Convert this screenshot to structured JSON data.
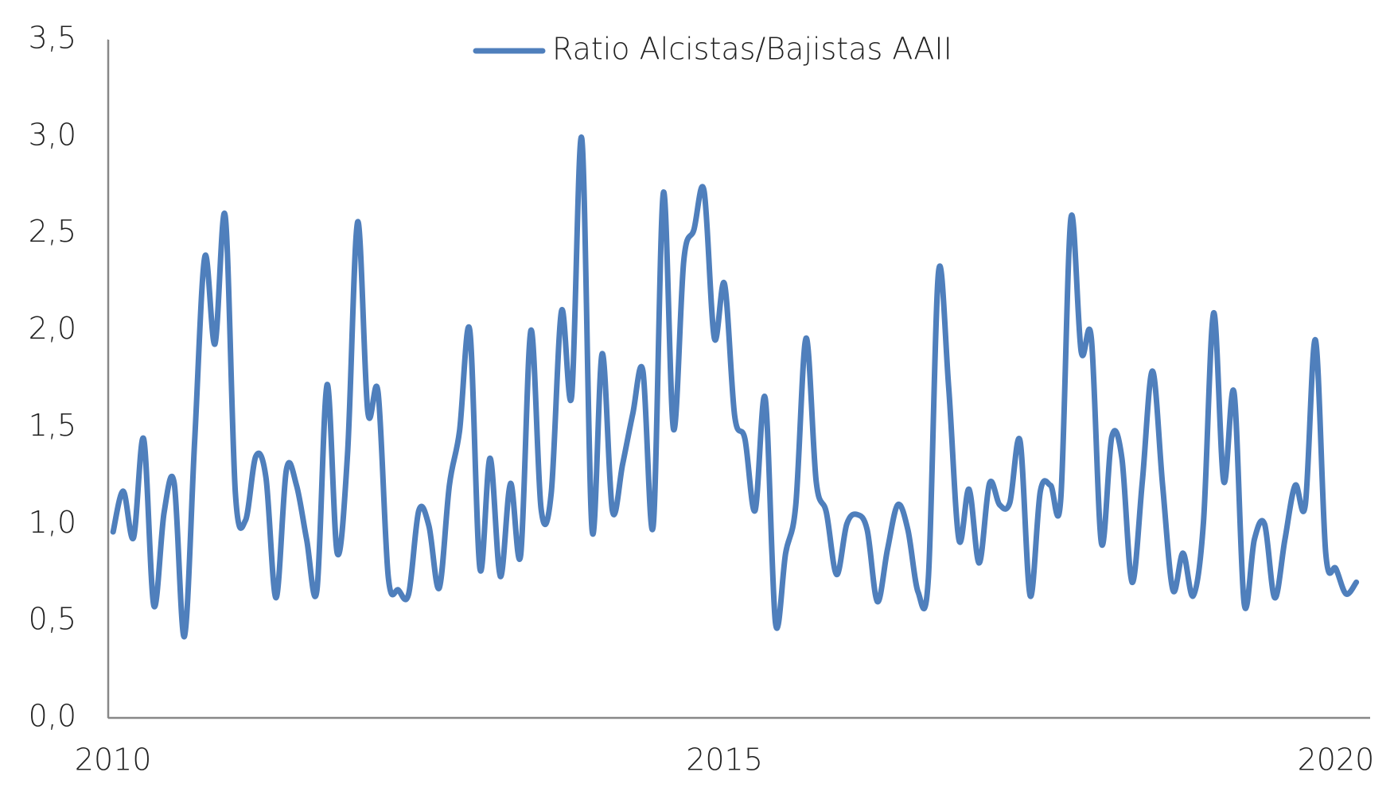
{
  "chart_data": {
    "type": "line",
    "x": [
      2010,
      2010.083,
      2010.167,
      2010.25,
      2010.333,
      2010.417,
      2010.5,
      2010.583,
      2010.667,
      2010.75,
      2010.833,
      2010.917,
      2011,
      2011.083,
      2011.167,
      2011.25,
      2011.333,
      2011.417,
      2011.5,
      2011.583,
      2011.667,
      2011.75,
      2011.833,
      2011.917,
      2012,
      2012.083,
      2012.167,
      2012.25,
      2012.333,
      2012.417,
      2012.5,
      2012.583,
      2012.667,
      2012.75,
      2012.833,
      2012.917,
      2013,
      2013.083,
      2013.167,
      2013.25,
      2013.333,
      2013.417,
      2013.5,
      2013.583,
      2013.667,
      2013.75,
      2013.833,
      2013.917,
      2014,
      2014.083,
      2014.167,
      2014.25,
      2014.333,
      2014.417,
      2014.5,
      2014.583,
      2014.667,
      2014.75,
      2014.833,
      2014.917,
      2015,
      2015.083,
      2015.167,
      2015.25,
      2015.333,
      2015.417,
      2015.5,
      2015.583,
      2015.667,
      2015.75,
      2015.833,
      2015.917,
      2016,
      2016.083,
      2016.167,
      2016.25,
      2016.333,
      2016.417,
      2016.5,
      2016.583,
      2016.667,
      2016.75,
      2016.833,
      2016.917,
      2017,
      2017.083,
      2017.167,
      2017.25,
      2017.333,
      2017.417,
      2017.5,
      2017.583,
      2017.667,
      2017.75,
      2017.833,
      2017.917,
      2018,
      2018.083,
      2018.167,
      2018.25,
      2018.333,
      2018.417,
      2018.5,
      2018.583,
      2018.667,
      2018.75,
      2018.833,
      2018.917,
      2019,
      2019.083,
      2019.167,
      2019.25,
      2019.333,
      2019.417,
      2019.5,
      2019.583,
      2019.667,
      2019.75,
      2019.833,
      2019.917,
      2020,
      2020.083,
      2020.167
    ],
    "series": [
      {
        "name": "Ratio Alcistas/Bajistas AAII",
        "color": "#4f7fbc",
        "values": [
          0.96,
          1.17,
          0.93,
          1.44,
          0.58,
          1.06,
          1.21,
          0.42,
          1.43,
          2.38,
          1.93,
          2.59,
          1.16,
          1.02,
          1.35,
          1.24,
          0.62,
          1.28,
          1.2,
          0.92,
          0.66,
          1.72,
          0.85,
          1.36,
          2.56,
          1.58,
          1.68,
          0.73,
          0.66,
          0.64,
          1.07,
          0.99,
          0.67,
          1.2,
          1.48,
          2.0,
          0.77,
          1.34,
          0.73,
          1.21,
          0.84,
          2.0,
          1.08,
          1.16,
          2.1,
          1.66,
          2.99,
          0.97,
          1.88,
          1.07,
          1.31,
          1.57,
          1.79,
          0.99,
          2.71,
          1.49,
          2.36,
          2.52,
          2.72,
          1.96,
          2.24,
          1.56,
          1.44,
          1.07,
          1.65,
          0.49,
          0.85,
          1.1,
          1.96,
          1.22,
          1.06,
          0.74,
          1.0,
          1.05,
          0.97,
          0.6,
          0.87,
          1.1,
          0.97,
          0.65,
          0.72,
          2.3,
          1.71,
          0.92,
          1.18,
          0.8,
          1.21,
          1.1,
          1.11,
          1.43,
          0.63,
          1.17,
          1.2,
          1.13,
          2.58,
          1.89,
          1.96,
          0.9,
          1.45,
          1.34,
          0.7,
          1.22,
          1.79,
          1.2,
          0.66,
          0.85,
          0.63,
          1.01,
          2.09,
          1.22,
          1.68,
          0.59,
          0.92,
          1.0,
          0.62,
          0.92,
          1.2,
          1.1,
          1.95,
          0.85,
          0.77,
          0.64,
          0.7
        ]
      }
    ],
    "xlim": [
      2009.96,
      2020.28
    ],
    "xticks": [
      2010,
      2015,
      2020
    ],
    "ylim": [
      0,
      3.5
    ],
    "yticks": [
      {
        "value": 0,
        "label": "0,0"
      },
      {
        "value": 0.5,
        "label": "0,5"
      },
      {
        "value": 1,
        "label": "1,0"
      },
      {
        "value": 1.5,
        "label": "1,5"
      },
      {
        "value": 2,
        "label": "2,0"
      },
      {
        "value": 2.5,
        "label": "2,5"
      },
      {
        "value": 3,
        "label": "3,0"
      },
      {
        "value": 3.5,
        "label": "3,5"
      }
    ],
    "grid": false,
    "legend": "top"
  }
}
